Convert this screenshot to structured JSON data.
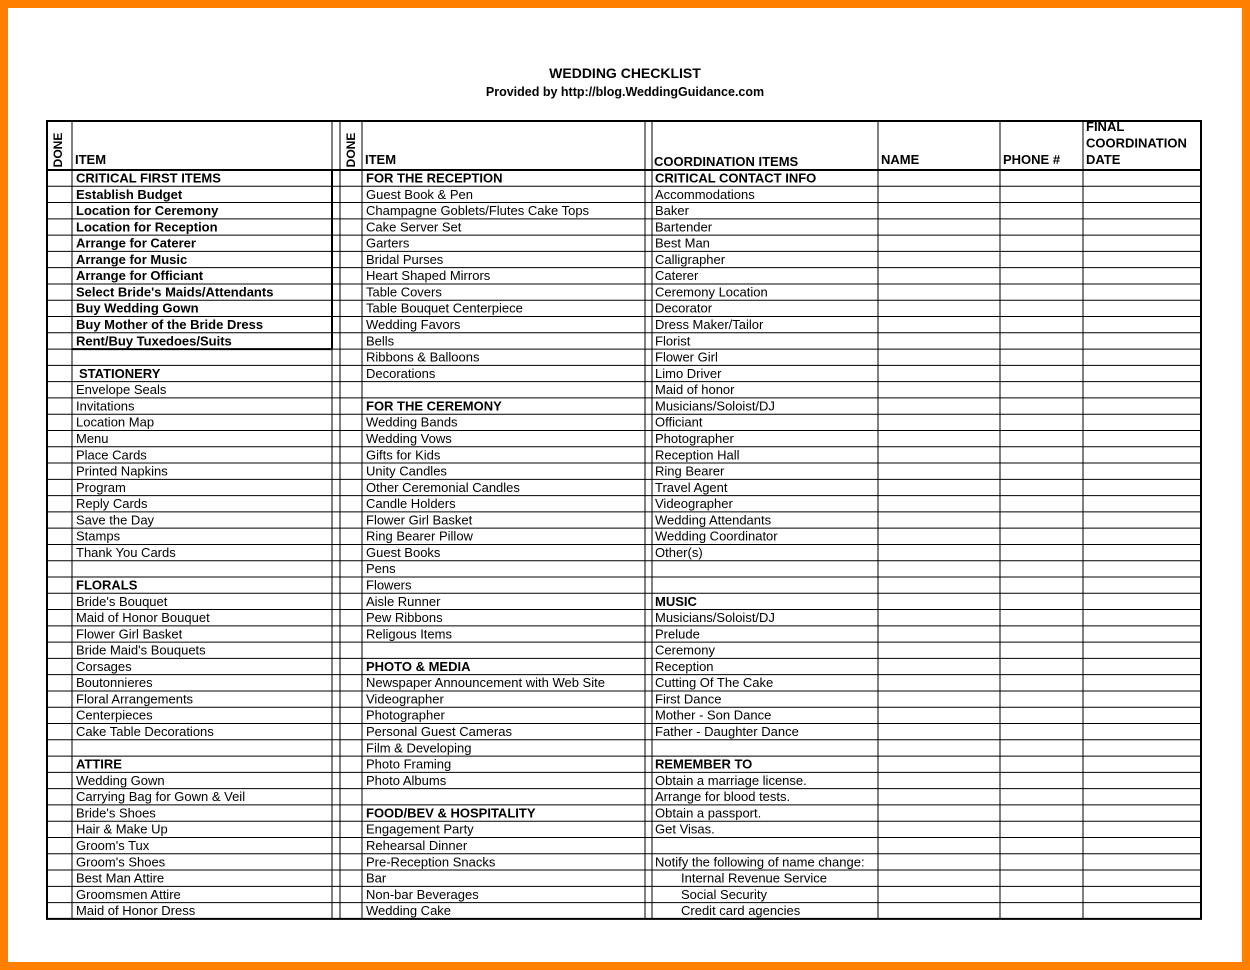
{
  "title": "WEDDING CHECKLIST",
  "subtitle": "Provided by http://blog.WeddingGuidance.com",
  "table": {
    "header": [
      "DONE",
      "ITEM",
      "DONE",
      "ITEM",
      "COORDINATION ITEMS",
      "NAME",
      "PHONE #",
      [
        "FINAL",
        "COORDINATION",
        "DATE"
      ]
    ],
    "columns": [
      [
        "CRITICAL FIRST ITEMS",
        "Establish Budget",
        "Location for Ceremony",
        "Location for Reception",
        "Arrange for Caterer",
        "Arrange for Music",
        "Arrange for Officiant",
        "Select Bride's Maids/Attendants",
        "Buy Wedding Gown",
        "Buy Mother of the Bride Dress",
        "Rent/Buy Tuxedoes/Suits",
        null,
        "STATIONERY",
        "Envelope Seals",
        "Invitations",
        "Location Map",
        "Menu",
        "Place Cards",
        "Printed Napkins",
        "Program",
        "Reply Cards",
        "Save the Day",
        "Stamps",
        "Thank You Cards",
        null,
        "FLORALS",
        "Bride's Bouquet",
        "Maid of Honor Bouquet",
        "Flower Girl Basket",
        "Bride Maid's Bouquets",
        "Corsages",
        "Boutonnieres",
        "Floral Arrangements",
        "Centerpieces",
        "Cake Table Decorations",
        null,
        "ATTIRE",
        "Wedding Gown",
        "Carrying Bag for Gown & Veil",
        "Bride's Shoes",
        "Hair & Make Up",
        "Groom's Tux",
        "Groom's Shoes",
        "Best Man Attire",
        "Groomsmen Attire",
        "Maid of Honor Dress"
      ],
      [
        "FOR THE RECEPTION",
        "Guest Book & Pen",
        "Champagne Goblets/Flutes Cake Tops",
        "Cake Server Set",
        "Garters",
        "Bridal Purses",
        "Heart Shaped Mirrors",
        "Table Covers",
        "Table Bouquet Centerpiece",
        "Wedding Favors",
        "Bells",
        "Ribbons & Balloons",
        "Decorations",
        null,
        "FOR THE CEREMONY",
        "Wedding Bands",
        "Wedding Vows",
        "Gifts for Kids",
        "Unity Candles",
        "Other Ceremonial Candles",
        "Candle Holders",
        "Flower Girl Basket",
        "Ring Bearer Pillow",
        "Guest Books",
        "Pens",
        "Flowers",
        "Aisle Runner",
        "Pew Ribbons",
        "Religous Items",
        null,
        "PHOTO & MEDIA",
        "Newspaper Announcement with Web Site",
        "Videographer",
        "Photographer",
        "Personal Guest Cameras",
        "Film & Developing",
        "Photo Framing",
        "Photo Albums",
        null,
        "FOOD/BEV & HOSPITALITY",
        "Engagement Party",
        "Rehearsal Dinner",
        "Pre-Reception Snacks",
        "Bar",
        "Non-bar Beverages",
        "Wedding Cake"
      ],
      [
        "CRITICAL CONTACT INFO",
        "Accommodations",
        "Baker",
        "Bartender",
        "Best Man",
        "Calligrapher",
        "Caterer",
        "Ceremony Location",
        "Decorator",
        "Dress Maker/Tailor",
        "Florist",
        "Flower Girl",
        "Limo Driver",
        "Maid of honor",
        "Musicians/Soloist/DJ",
        "Officiant",
        "Photographer",
        "Reception Hall",
        "Ring Bearer",
        "Travel Agent",
        "Videographer",
        "Wedding Attendants",
        "Wedding Coordinator",
        "Other(s)",
        null,
        null,
        "MUSIC",
        "Musicians/Soloist/DJ",
        "Prelude",
        "Ceremony",
        "Reception",
        "Cutting Of The Cake",
        "First Dance",
        "Mother - Son Dance",
        "Father - Daughter Dance",
        null,
        "REMEMBER TO",
        "Obtain a marriage license.",
        "Arrange for blood tests.",
        "Obtain a passport.",
        "Get Visas.",
        null,
        "Notify the following of name change:",
        "Internal Revenue Service",
        "Social Security",
        "Credit card agencies"
      ]
    ]
  }
}
